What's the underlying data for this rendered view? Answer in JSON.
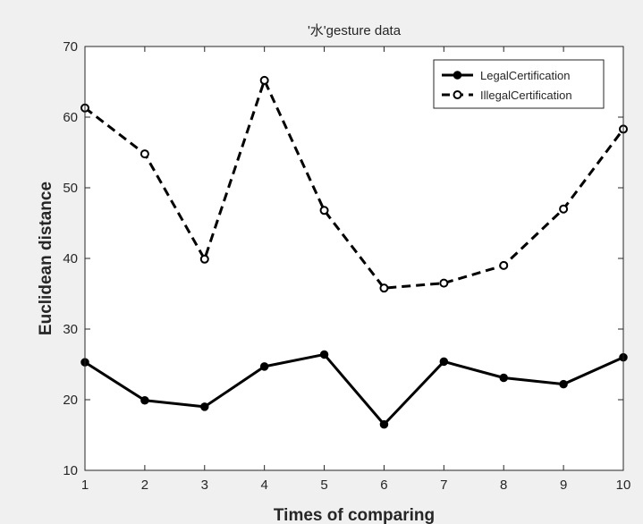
{
  "chart_data": {
    "type": "line",
    "title": "'水'gesture data",
    "xlabel": "Times of comparing",
    "ylabel": "Euclidean distance",
    "x": [
      1,
      2,
      3,
      4,
      5,
      6,
      7,
      8,
      9,
      10
    ],
    "xlim": [
      1,
      10
    ],
    "ylim": [
      10,
      70
    ],
    "xticks": [
      1,
      2,
      3,
      4,
      5,
      6,
      7,
      8,
      9,
      10
    ],
    "yticks": [
      10,
      20,
      30,
      40,
      50,
      60,
      70
    ],
    "grid": false,
    "legend_position": "top-right",
    "series": [
      {
        "name": "LegalCertification",
        "values": [
          25.3,
          19.9,
          19.0,
          24.7,
          26.4,
          16.5,
          25.4,
          23.1,
          22.2,
          26.0
        ],
        "line_style": "solid",
        "marker": "filled-circle",
        "color": "#000000"
      },
      {
        "name": "IllegalCertification",
        "values": [
          61.3,
          54.8,
          39.9,
          65.2,
          46.8,
          35.8,
          36.5,
          39.0,
          47.0,
          58.3
        ],
        "line_style": "dashed",
        "marker": "open-circle",
        "color": "#000000"
      }
    ]
  }
}
